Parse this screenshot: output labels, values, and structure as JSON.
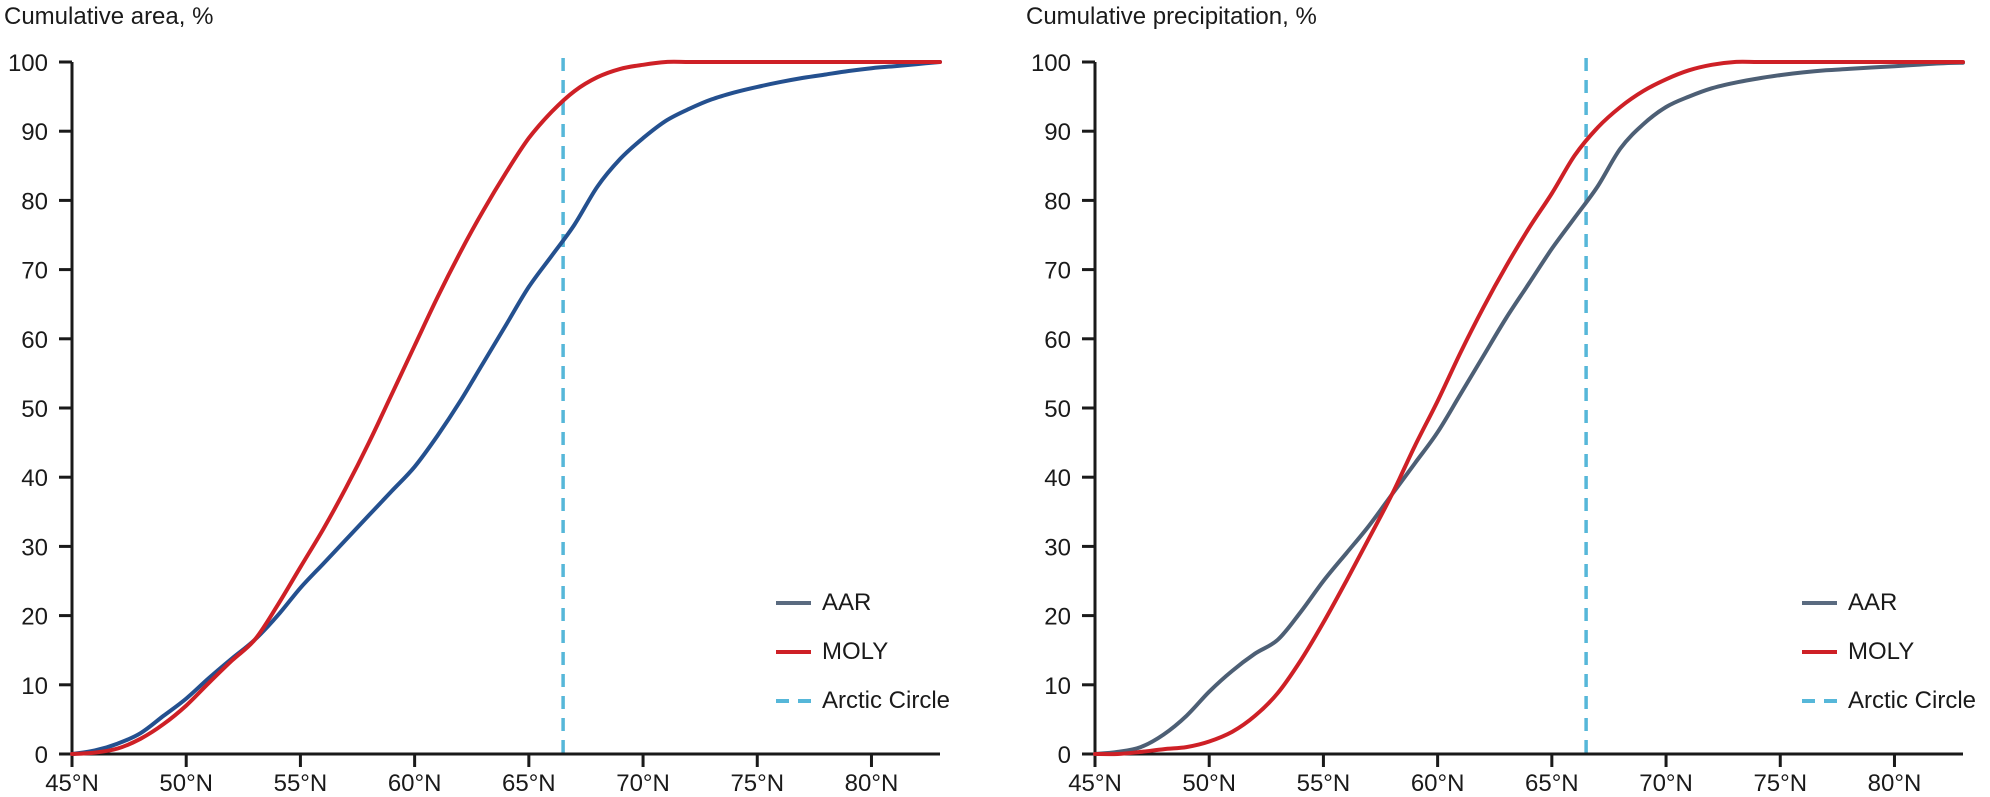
{
  "colors": {
    "background": "#FFFFFF",
    "text": "#1A1A1A",
    "axis": "#1A1A1A",
    "aar_curve_left": "#24508F",
    "aar_curve_right": "#4D5F75",
    "aar_legend_swatch": "#5A6B80",
    "moly_red": "#CE2026",
    "arctic_blue": "#56B7D9"
  },
  "chart_data": [
    {
      "type": "line",
      "title": "Cumulative area, %",
      "xlim": [
        45,
        83
      ],
      "ylim": [
        0,
        100
      ],
      "grid": false,
      "legend_position": "bottom-right",
      "x_tick_values": [
        45,
        50,
        55,
        60,
        65,
        70,
        75,
        80
      ],
      "x_tick_labels": [
        "45°N",
        "50°N",
        "55°N",
        "60°N",
        "65°N",
        "70°N",
        "75°N",
        "80°N"
      ],
      "y_tick_values": [
        0,
        10,
        20,
        30,
        40,
        50,
        60,
        70,
        80,
        90,
        100
      ],
      "y_tick_labels": [
        "0",
        "10",
        "20",
        "30",
        "40",
        "50",
        "60",
        "70",
        "80",
        "90",
        "100"
      ],
      "x": [
        45,
        46,
        47,
        48,
        49,
        50,
        51,
        52,
        53,
        54,
        55,
        56,
        57,
        58,
        59,
        60,
        61,
        62,
        63,
        64,
        65,
        66,
        67,
        68,
        69,
        70,
        71,
        72,
        73,
        74,
        75,
        76,
        77,
        78,
        79,
        80,
        81,
        82,
        83
      ],
      "series": [
        {
          "name": "AAR",
          "color": "#24508F",
          "values": [
            0,
            0.5,
            1.5,
            3,
            5.5,
            8,
            11,
            13.8,
            16.5,
            20,
            24,
            27.5,
            31,
            34.5,
            38,
            41.5,
            46,
            51,
            56.5,
            62,
            67.5,
            72,
            76.5,
            82,
            86,
            89,
            91.5,
            93.2,
            94.6,
            95.6,
            96.4,
            97.1,
            97.7,
            98.2,
            98.7,
            99.1,
            99.4,
            99.7,
            100
          ]
        },
        {
          "name": "MOLY",
          "color": "#CE2026",
          "values": [
            0,
            0.2,
            0.8,
            2.2,
            4.3,
            7,
            10.3,
            13.5,
            16.5,
            21.5,
            27,
            32.5,
            38.5,
            45,
            52,
            59,
            66,
            72.5,
            78.5,
            84,
            89,
            92.8,
            95.8,
            97.8,
            99,
            99.6,
            100,
            100,
            100,
            100,
            100,
            100,
            100,
            100,
            100,
            100,
            100,
            100,
            100
          ]
        }
      ],
      "reference_line": {
        "label": "Arctic Circle",
        "x": 66.5,
        "style": "dashed",
        "color": "#56B7D9"
      },
      "legend": [
        {
          "label": "AAR",
          "style": "solid",
          "color": "#5A6B80"
        },
        {
          "label": "MOLY",
          "style": "solid",
          "color": "#CE2026"
        },
        {
          "label": "Arctic Circle",
          "style": "dashed",
          "color": "#56B7D9"
        }
      ]
    },
    {
      "type": "line",
      "title": "Cumulative precipitation, %",
      "xlim": [
        45,
        83
      ],
      "ylim": [
        0,
        100
      ],
      "grid": false,
      "legend_position": "bottom-right",
      "x_tick_values": [
        45,
        50,
        55,
        60,
        65,
        70,
        75,
        80
      ],
      "x_tick_labels": [
        "45°N",
        "50°N",
        "55°N",
        "60°N",
        "65°N",
        "70°N",
        "75°N",
        "80°N"
      ],
      "y_tick_values": [
        0,
        10,
        20,
        30,
        40,
        50,
        60,
        70,
        80,
        90,
        100
      ],
      "y_tick_labels": [
        "0",
        "10",
        "20",
        "30",
        "40",
        "50",
        "60",
        "70",
        "80",
        "90",
        "100"
      ],
      "x": [
        45,
        46,
        47,
        48,
        49,
        50,
        51,
        52,
        53,
        54,
        55,
        56,
        57,
        58,
        59,
        60,
        61,
        62,
        63,
        64,
        65,
        66,
        67,
        68,
        69,
        70,
        71,
        72,
        73,
        74,
        75,
        76,
        77,
        78,
        79,
        80,
        81,
        82,
        83
      ],
      "series": [
        {
          "name": "AAR",
          "color": "#4D5F75",
          "values": [
            0,
            0.3,
            1,
            2.8,
            5.5,
            9,
            12,
            14.5,
            16.5,
            20.5,
            25,
            29,
            33,
            37.5,
            42,
            46.5,
            52,
            57.5,
            63,
            68,
            73,
            77.5,
            82,
            87.5,
            91,
            93.5,
            95,
            96.2,
            97,
            97.6,
            98.1,
            98.5,
            98.8,
            99,
            99.2,
            99.4,
            99.6,
            99.8,
            99.9
          ]
        },
        {
          "name": "MOLY",
          "color": "#CE2026",
          "values": [
            0,
            0,
            0.3,
            0.7,
            1,
            1.8,
            3.2,
            5.5,
            8.8,
            13.5,
            19,
            25,
            31.2,
            37.5,
            44.5,
            51,
            58,
            64.5,
            70.5,
            76,
            81,
            86.5,
            90.5,
            93.5,
            95.8,
            97.5,
            98.8,
            99.6,
            100,
            100,
            100,
            100,
            100,
            100,
            100,
            100,
            100,
            100,
            100
          ]
        }
      ],
      "reference_line": {
        "label": "Arctic Circle",
        "x": 66.5,
        "style": "dashed",
        "color": "#56B7D9"
      },
      "legend": [
        {
          "label": "AAR",
          "style": "solid",
          "color": "#5A6B80"
        },
        {
          "label": "MOLY",
          "style": "solid",
          "color": "#CE2026"
        },
        {
          "label": "Arctic Circle",
          "style": "dashed",
          "color": "#56B7D9"
        }
      ]
    }
  ]
}
